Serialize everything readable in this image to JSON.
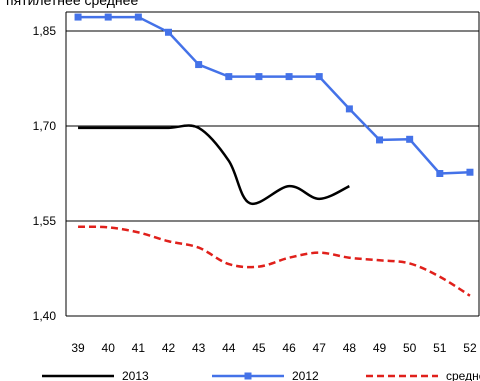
{
  "chart_data": {
    "type": "line",
    "title": "пятилетнее среднее",
    "xlabel": "",
    "ylabel": "",
    "x": [
      39,
      40,
      41,
      42,
      43,
      44,
      45,
      46,
      47,
      48,
      49,
      50,
      51,
      52
    ],
    "x_tick_labels": [
      "39",
      "40",
      "41",
      "42",
      "43",
      "44",
      "45",
      "46",
      "47",
      "48",
      "49",
      "50",
      "51",
      "52"
    ],
    "xlim": [
      38.6,
      52.3
    ],
    "ylim": [
      1.4,
      1.88
    ],
    "y_ticks": [
      1.4,
      1.55,
      1.7,
      1.85
    ],
    "y_tick_labels": [
      "1,40",
      "1,55",
      "1,70",
      "1,85"
    ],
    "grid": "horizontal",
    "legend_position": "bottom",
    "series": [
      {
        "name": "2013",
        "color": "#000000",
        "style": "solid",
        "markers": false,
        "smooth": true,
        "points": [
          [
            39,
            1.697
          ],
          [
            40,
            1.697
          ],
          [
            41,
            1.697
          ],
          [
            42,
            1.697
          ],
          [
            43,
            1.697
          ],
          [
            44,
            1.645
          ],
          [
            44.7,
            1.578
          ],
          [
            46,
            1.605
          ],
          [
            47,
            1.585
          ],
          [
            48,
            1.605
          ]
        ]
      },
      {
        "name": "2012",
        "color": "#4472E8",
        "style": "solid",
        "markers": true,
        "smooth": false,
        "points": [
          [
            39,
            1.872
          ],
          [
            40,
            1.872
          ],
          [
            41,
            1.872
          ],
          [
            42,
            1.848
          ],
          [
            43,
            1.797
          ],
          [
            44,
            1.778
          ],
          [
            45,
            1.778
          ],
          [
            46,
            1.778
          ],
          [
            47,
            1.778
          ],
          [
            48,
            1.727
          ],
          [
            49,
            1.678
          ],
          [
            50,
            1.679
          ],
          [
            51,
            1.625
          ],
          [
            52,
            1.627
          ]
        ]
      },
      {
        "name": "среднее",
        "color": "#E0201B",
        "style": "dashed",
        "markers": false,
        "smooth": true,
        "points": [
          [
            39,
            1.541
          ],
          [
            40,
            1.54
          ],
          [
            41,
            1.532
          ],
          [
            42,
            1.518
          ],
          [
            43,
            1.508
          ],
          [
            44,
            1.482
          ],
          [
            45,
            1.478
          ],
          [
            46,
            1.492
          ],
          [
            47,
            1.5
          ],
          [
            48,
            1.492
          ],
          [
            49,
            1.488
          ],
          [
            50,
            1.483
          ],
          [
            51,
            1.462
          ],
          [
            52,
            1.432
          ]
        ]
      }
    ]
  }
}
